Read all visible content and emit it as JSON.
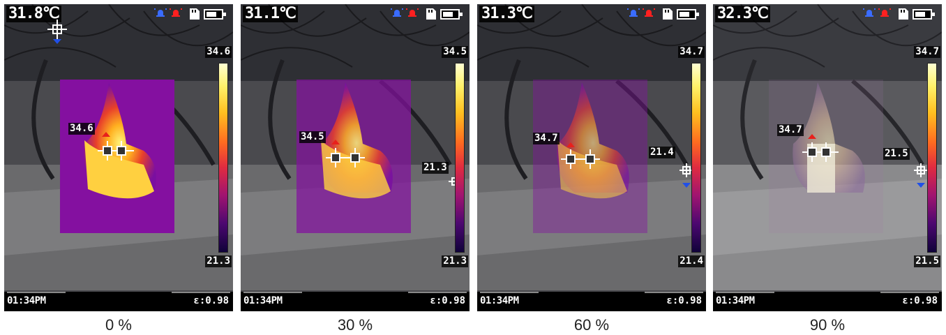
{
  "panels": [
    {
      "center_temp": "31.8℃",
      "max": "34.6",
      "min": "21.3",
      "hot_spot": "34.6",
      "cold_spot": "",
      "time": "01:34PM",
      "emissivity": "ε:0.98",
      "blend_caption": "0 %",
      "blend_fraction": 0.0
    },
    {
      "center_temp": "31.1℃",
      "max": "34.5",
      "min": "21.3",
      "hot_spot": "34.5",
      "cold_spot": "21.3",
      "time": "01:34PM",
      "emissivity": "ε:0.98",
      "blend_caption": "30 %",
      "blend_fraction": 0.3
    },
    {
      "center_temp": "31.3℃",
      "max": "34.7",
      "min": "21.4",
      "hot_spot": "34.7",
      "cold_spot": "21.4",
      "time": "01:34PM",
      "emissivity": "ε:0.98",
      "blend_caption": "60 %",
      "blend_fraction": 0.6
    },
    {
      "center_temp": "32.3℃",
      "max": "34.7",
      "min": "21.5",
      "hot_spot": "34.7",
      "cold_spot": "21.5",
      "time": "01:34PM",
      "emissivity": "ε:0.98",
      "blend_caption": "90 %",
      "blend_fraction": 0.9
    }
  ],
  "colors": {
    "hot_marker": "#e8201c",
    "cold_marker": "#2050e8",
    "alarm_blue": "#3a6cff",
    "alarm_red": "#ff2020"
  },
  "icons": [
    "alarm-blue-icon",
    "alarm-red-icon",
    "sd-card-icon",
    "battery-icon",
    "crosshair-icon"
  ]
}
